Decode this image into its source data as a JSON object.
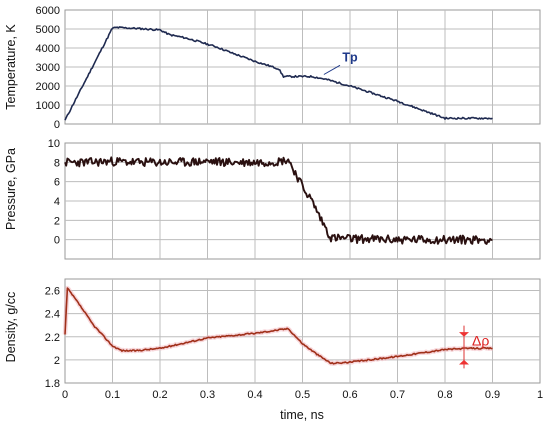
{
  "chart_data": [
    {
      "type": "line",
      "ylabel": "Temperature, K",
      "xlim": [
        0,
        1
      ],
      "ylim": [
        0,
        6000
      ],
      "yticks": [
        0,
        1000,
        2000,
        3000,
        4000,
        5000,
        6000
      ],
      "grid": true,
      "series": [
        {
          "color": "#1f2a50",
          "x": [
            0,
            0.1,
            0.11,
            0.15,
            0.2,
            0.22,
            0.25,
            0.28,
            0.3,
            0.32,
            0.35,
            0.4,
            0.45,
            0.46,
            0.5,
            0.52,
            0.55,
            0.6,
            0.7,
            0.8,
            0.9
          ],
          "y": [
            200,
            5050,
            5080,
            5030,
            4950,
            4700,
            4550,
            4350,
            4200,
            4050,
            3750,
            3300,
            2900,
            2500,
            2500,
            2500,
            2350,
            2000,
            1200,
            300,
            300
          ]
        }
      ],
      "annotations": [
        {
          "text": "Tp",
          "x": 0.6,
          "y": 3300,
          "arrow_to": [
            0.545,
            2500
          ]
        }
      ]
    },
    {
      "type": "line",
      "ylabel": "Pressure, GPa",
      "xlim": [
        0,
        1
      ],
      "ylim": [
        -2,
        10
      ],
      "yticks": [
        0,
        2,
        4,
        6,
        8,
        10
      ],
      "grid": true,
      "series": [
        {
          "color": "#2a1010",
          "x": [
            0,
            0.05,
            0.1,
            0.15,
            0.2,
            0.25,
            0.3,
            0.35,
            0.4,
            0.45,
            0.47,
            0.5,
            0.52,
            0.54,
            0.56,
            0.6,
            0.7,
            0.8,
            0.9
          ],
          "y": [
            8.0,
            8.0,
            8.1,
            8.0,
            8.0,
            8.0,
            8.1,
            8.0,
            8.0,
            8.1,
            8.3,
            5.5,
            4.0,
            2.0,
            0.2,
            0.1,
            0.0,
            0.0,
            0.0
          ]
        }
      ]
    },
    {
      "type": "line",
      "ylabel": "Density, g/cc",
      "xlabel": "time, ns",
      "xlim": [
        0,
        1
      ],
      "ylim": [
        1.8,
        2.7
      ],
      "yticks": [
        1.8,
        2,
        2.2,
        2.4,
        2.6
      ],
      "xticks": [
        0,
        0.1,
        0.2,
        0.3,
        0.4,
        0.5,
        0.6,
        0.7,
        0.8,
        0.9,
        1
      ],
      "grid": true,
      "series": [
        {
          "color": "#a0301a",
          "x": [
            0,
            0.005,
            0.03,
            0.06,
            0.1,
            0.12,
            0.15,
            0.2,
            0.3,
            0.35,
            0.4,
            0.45,
            0.47,
            0.5,
            0.53,
            0.56,
            0.6,
            0.7,
            0.8,
            0.85,
            0.9
          ],
          "y": [
            2.22,
            2.62,
            2.48,
            2.3,
            2.12,
            2.08,
            2.08,
            2.1,
            2.19,
            2.21,
            2.23,
            2.26,
            2.27,
            2.14,
            2.05,
            1.97,
            1.98,
            2.03,
            2.09,
            2.1,
            2.1
          ]
        }
      ],
      "annotations": [
        {
          "text": "Δρ",
          "x": 0.885,
          "y": 2.16
        }
      ]
    }
  ]
}
